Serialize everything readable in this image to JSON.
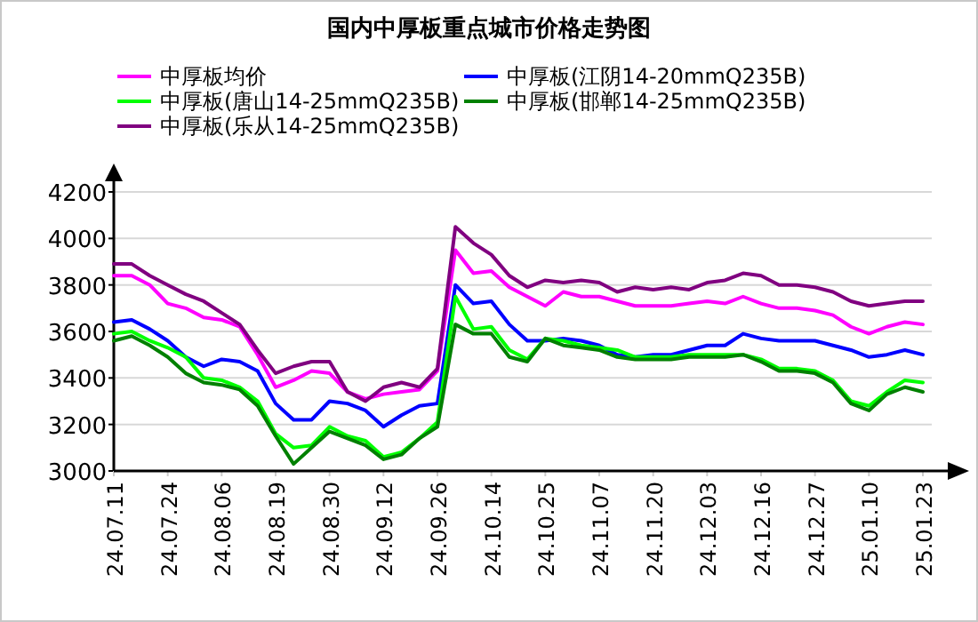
{
  "chart_data": {
    "type": "line",
    "title": "国内中厚板重点城市价格走势图",
    "categories": [
      "24.07.11",
      null,
      null,
      "24.07.24",
      null,
      null,
      "24.08.06",
      null,
      null,
      "24.08.19",
      null,
      null,
      "24.08.30",
      null,
      null,
      "24.09.12",
      null,
      null,
      "24.09.26",
      null,
      null,
      "24.10.14",
      null,
      null,
      "24.10.25",
      null,
      null,
      "24.11.07",
      null,
      null,
      "24.11.20",
      null,
      null,
      "24.12.03",
      null,
      null,
      "24.12.16",
      null,
      null,
      "24.12.27",
      null,
      null,
      "25.01.10",
      null,
      null,
      "25.01.23"
    ],
    "series": [
      {
        "name": "中厚板均价",
        "color": "#ff00ff",
        "values": [
          3840,
          3840,
          3800,
          3720,
          3700,
          3660,
          3650,
          3620,
          3500,
          3360,
          3390,
          3430,
          3420,
          3340,
          3310,
          3330,
          3340,
          3350,
          3430,
          3950,
          3850,
          3860,
          3790,
          3750,
          3710,
          3770,
          3750,
          3750,
          3730,
          3710,
          3710,
          3710,
          3720,
          3730,
          3720,
          3750,
          3720,
          3700,
          3700,
          3690,
          3670,
          3620,
          3590,
          3620,
          3640,
          3630
        ]
      },
      {
        "name": "中厚板(江阴14-20mmQ235B)",
        "color": "#0000ff",
        "values": [
          3640,
          3650,
          3610,
          3560,
          3490,
          3450,
          3480,
          3470,
          3430,
          3290,
          3220,
          3220,
          3300,
          3290,
          3260,
          3190,
          3240,
          3280,
          3290,
          3800,
          3720,
          3730,
          3630,
          3560,
          3560,
          3570,
          3560,
          3540,
          3500,
          3490,
          3500,
          3500,
          3520,
          3540,
          3540,
          3590,
          3570,
          3560,
          3560,
          3560,
          3540,
          3520,
          3490,
          3500,
          3520,
          3500
        ]
      },
      {
        "name": "中厚板(唐山14-25mmQ235B)",
        "color": "#00ff00",
        "values": [
          3590,
          3600,
          3560,
          3530,
          3490,
          3400,
          3390,
          3360,
          3300,
          3160,
          3100,
          3110,
          3190,
          3150,
          3130,
          3060,
          3080,
          3140,
          3210,
          3750,
          3610,
          3620,
          3520,
          3480,
          3570,
          3560,
          3540,
          3530,
          3520,
          3490,
          3490,
          3490,
          3500,
          3500,
          3500,
          3500,
          3480,
          3440,
          3440,
          3430,
          3390,
          3300,
          3280,
          3340,
          3390,
          3380
        ]
      },
      {
        "name": "中厚板(邯郸14-25mmQ235B)",
        "color": "#008000",
        "values": [
          3560,
          3580,
          3540,
          3490,
          3420,
          3380,
          3370,
          3350,
          3280,
          3150,
          3030,
          3100,
          3170,
          3140,
          3110,
          3050,
          3070,
          3140,
          3190,
          3630,
          3590,
          3590,
          3490,
          3470,
          3570,
          3540,
          3530,
          3520,
          3490,
          3480,
          3480,
          3480,
          3490,
          3490,
          3490,
          3500,
          3470,
          3430,
          3430,
          3420,
          3380,
          3290,
          3260,
          3330,
          3360,
          3340
        ]
      },
      {
        "name": "中厚板(乐从14-25mmQ235B)",
        "color": "#800080",
        "values": [
          3890,
          3890,
          3840,
          3800,
          3760,
          3730,
          3680,
          3630,
          3520,
          3420,
          3450,
          3470,
          3470,
          3340,
          3300,
          3360,
          3380,
          3360,
          3440,
          4050,
          3980,
          3930,
          3840,
          3790,
          3820,
          3810,
          3820,
          3810,
          3770,
          3790,
          3780,
          3790,
          3780,
          3810,
          3820,
          3850,
          3840,
          3800,
          3800,
          3790,
          3770,
          3730,
          3710,
          3720,
          3730,
          3730
        ]
      }
    ],
    "ylim": [
      3000,
      4200
    ],
    "yticks": [
      3000,
      3200,
      3400,
      3600,
      3800,
      4000,
      4200
    ],
    "grid": "y",
    "legend": "top",
    "marker": "none",
    "line_style": "solid"
  }
}
